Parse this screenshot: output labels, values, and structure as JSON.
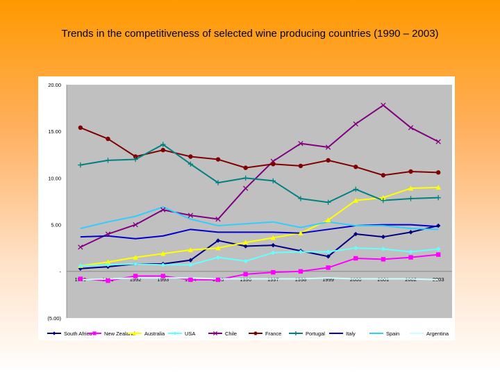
{
  "chart_data": {
    "type": "line",
    "title": "Trends in the competitiveness of selected wine producing countries (1990 – 2003)",
    "x": [
      "1990",
      "1991",
      "1992",
      "1993",
      "1994",
      "1995",
      "1996",
      "1997",
      "1998",
      "1999",
      "2000",
      "2001",
      "2002",
      "2003"
    ],
    "ylim": [
      -5,
      20
    ],
    "y_ticks": [
      20,
      15,
      10,
      5,
      0,
      -5
    ],
    "y_tick_labels": [
      "20.00",
      "15.00",
      "10.00",
      "5.00",
      "-",
      "(5.00)"
    ],
    "grid": false,
    "legend_position": "bottom",
    "series": [
      {
        "name": "South Africa",
        "color": "#000080",
        "marker": "diamond",
        "values": [
          0.3,
          0.5,
          0.8,
          0.8,
          1.2,
          3.3,
          2.7,
          2.8,
          2.2,
          1.6,
          4.0,
          3.7,
          4.2,
          4.9
        ]
      },
      {
        "name": "New Zealand",
        "color": "#ff00ff",
        "marker": "square",
        "values": [
          -0.8,
          -1.0,
          -0.5,
          -0.5,
          -0.9,
          -0.9,
          -0.3,
          -0.1,
          0.0,
          0.4,
          1.4,
          1.3,
          1.5,
          1.8
        ]
      },
      {
        "name": "Australia",
        "color": "#ffff00",
        "marker": "triangle",
        "values": [
          0.6,
          1.0,
          1.5,
          1.9,
          2.3,
          2.5,
          3.1,
          3.6,
          4.1,
          5.5,
          7.6,
          7.9,
          8.9,
          9.0
        ]
      },
      {
        "name": "USA",
        "color": "#66ffff",
        "marker": "diamond",
        "values": [
          0.6,
          0.7,
          0.8,
          0.7,
          0.7,
          1.5,
          1.1,
          2.0,
          2.1,
          2.1,
          2.5,
          2.4,
          2.1,
          2.4
        ]
      },
      {
        "name": "Chile",
        "color": "#800080",
        "marker": "x",
        "values": [
          2.6,
          4.0,
          5.0,
          6.6,
          6.0,
          5.6,
          8.9,
          11.8,
          13.7,
          13.3,
          15.8,
          17.8,
          15.4,
          13.9
        ]
      },
      {
        "name": "France",
        "color": "#800000",
        "marker": "circle",
        "values": [
          15.4,
          14.2,
          12.3,
          13.0,
          12.3,
          12.0,
          11.1,
          11.5,
          11.3,
          11.9,
          11.2,
          10.3,
          10.7,
          10.6
        ]
      },
      {
        "name": "Portugal",
        "color": "#008080",
        "marker": "plus",
        "values": [
          11.4,
          11.9,
          12.0,
          13.6,
          11.5,
          9.5,
          10.0,
          9.7,
          7.8,
          7.4,
          8.8,
          7.6,
          7.8,
          7.9
        ]
      },
      {
        "name": "Italy",
        "color": "#0000cc",
        "marker": "none",
        "values": [
          3.7,
          3.8,
          3.5,
          3.8,
          4.5,
          4.2,
          4.2,
          4.2,
          4.1,
          4.5,
          4.9,
          5.0,
          5.0,
          4.8
        ]
      },
      {
        "name": "Spain",
        "color": "#33ccff",
        "marker": "none",
        "values": [
          4.6,
          5.3,
          5.9,
          6.9,
          5.6,
          4.9,
          5.1,
          5.3,
          4.7,
          5.3,
          4.9,
          4.9,
          4.6,
          4.5
        ]
      },
      {
        "name": "Argentina",
        "color": "#ccffff",
        "marker": "none",
        "values": [
          -0.9,
          -0.8,
          -0.7,
          -0.7,
          -0.7,
          -0.8,
          -0.8,
          -0.8,
          -0.8,
          -0.7,
          -0.8,
          -0.8,
          -0.8,
          -0.9
        ]
      }
    ]
  }
}
